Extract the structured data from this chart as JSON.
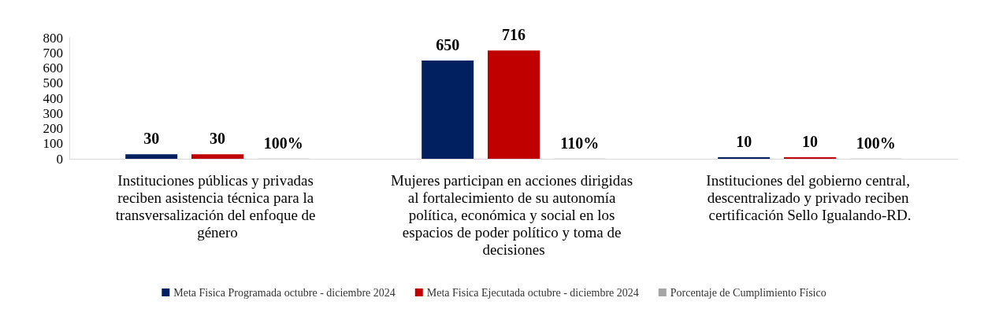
{
  "chart_data": {
    "type": "bar",
    "categories": [
      "Instituciones públicas y privadas reciben asistencia técnica para la transversalización del enfoque de género",
      "Mujeres participan en acciones dirigidas al fortalecimiento de su autonomía política, económica y social en los espacios de poder político y toma de decisiones",
      "Instituciones del gobierno central, descentralizado y privado reciben certificación Sello Igualando-RD."
    ],
    "series": [
      {
        "name": "Meta Fisica Programada octubre - diciembre 2024",
        "color": "#002060",
        "values": [
          30,
          650,
          10
        ],
        "value_labels": [
          "30",
          "650",
          "10"
        ]
      },
      {
        "name": "Meta Fisica Ejecutada octubre - diciembre 2024",
        "color": "#c00000",
        "values": [
          30,
          716,
          10
        ],
        "value_labels": [
          "30",
          "716",
          "10"
        ]
      },
      {
        "name": "Porcentaje de Cumplimiento Físico",
        "color": "#a5a5a5",
        "values": [
          1,
          1.1,
          1
        ],
        "value_labels": [
          "100%",
          "110%",
          "100%"
        ]
      }
    ],
    "ylim": [
      0,
      800
    ],
    "yticks": [
      0,
      100,
      200,
      300,
      400,
      500,
      600,
      700,
      800
    ],
    "grid": false,
    "legend": "bottom"
  }
}
